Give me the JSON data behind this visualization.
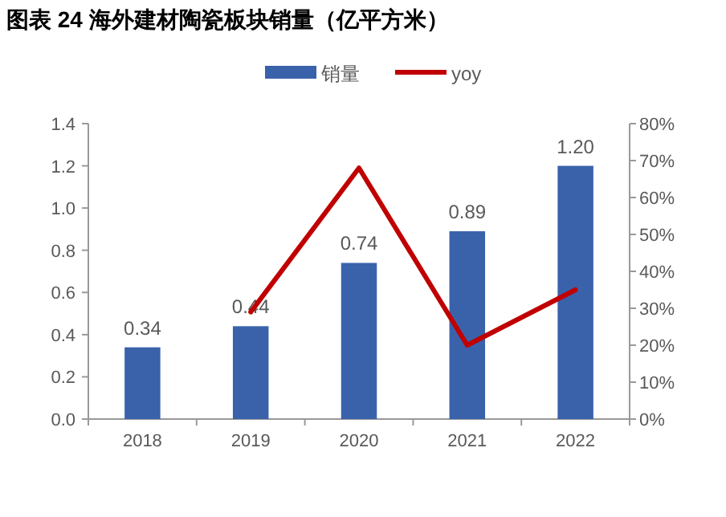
{
  "chart_data": {
    "type": "bar",
    "title": "图表 24 海外建材陶瓷板块销量（亿平方米）",
    "categories": [
      "2018",
      "2019",
      "2020",
      "2021",
      "2022"
    ],
    "series": [
      {
        "name": "销量",
        "color": "#3a62ab",
        "values": [
          0.34,
          0.44,
          0.74,
          0.89,
          1.2
        ],
        "value_labels": [
          "0.34",
          "0.44",
          "0.74",
          "0.89",
          "1.20"
        ]
      },
      {
        "name": "yoy",
        "type": "line",
        "axis": "y2",
        "color": "#c00000",
        "values": [
          null,
          29,
          68,
          20,
          35
        ]
      }
    ],
    "ylim": [
      0,
      1.4
    ],
    "yticks": [
      {
        "value": 0,
        "label": "0.0"
      },
      {
        "value": 0.2,
        "label": "0.2"
      },
      {
        "value": 0.4,
        "label": "0.4"
      },
      {
        "value": 0.6,
        "label": "0.6"
      },
      {
        "value": 0.8,
        "label": "0.8"
      },
      {
        "value": 1.0,
        "label": "1.0"
      },
      {
        "value": 1.2,
        "label": "1.2"
      },
      {
        "value": 1.4,
        "label": "1.4"
      }
    ],
    "y2lim": [
      0,
      80
    ],
    "y2ticks": [
      {
        "value": 0,
        "label": "0%"
      },
      {
        "value": 10,
        "label": "10%"
      },
      {
        "value": 20,
        "label": "20%"
      },
      {
        "value": 30,
        "label": "30%"
      },
      {
        "value": 40,
        "label": "40%"
      },
      {
        "value": 50,
        "label": "50%"
      },
      {
        "value": 60,
        "label": "60%"
      },
      {
        "value": 70,
        "label": "70%"
      },
      {
        "value": 80,
        "label": "80%"
      }
    ],
    "legend": "top",
    "grid": false
  }
}
